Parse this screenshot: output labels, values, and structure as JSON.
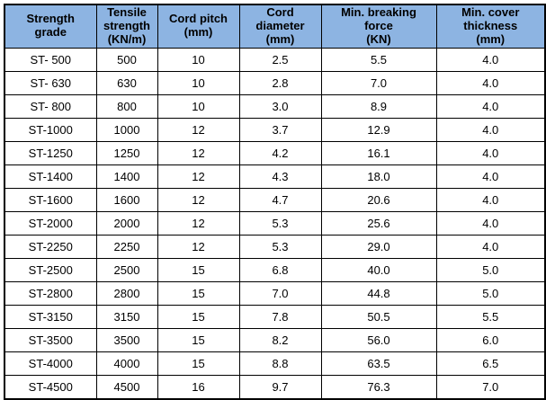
{
  "colors": {
    "header_bg": "#8DB4E2",
    "border": "#000000",
    "cell_bg": "#FFFFFF",
    "text": "#000000"
  },
  "table": {
    "columns": [
      {
        "label": "Strength\ngrade"
      },
      {
        "label": "Tensile\nstrength\n(KN/m)"
      },
      {
        "label": "Cord pitch\n(mm)"
      },
      {
        "label": "Cord\ndiameter\n(mm)"
      },
      {
        "label": "Min. breaking\nforce\n(KN)"
      },
      {
        "label": "Min. cover\nthickness\n(mm)"
      }
    ],
    "rows": [
      [
        "ST- 500",
        "500",
        "10",
        "2.5",
        "5.5",
        "4.0"
      ],
      [
        "ST- 630",
        "630",
        "10",
        "2.8",
        "7.0",
        "4.0"
      ],
      [
        "ST- 800",
        "800",
        "10",
        "3.0",
        "8.9",
        "4.0"
      ],
      [
        "ST-1000",
        "1000",
        "12",
        "3.7",
        "12.9",
        "4.0"
      ],
      [
        "ST-1250",
        "1250",
        "12",
        "4.2",
        "16.1",
        "4.0"
      ],
      [
        "ST-1400",
        "1400",
        "12",
        "4.3",
        "18.0",
        "4.0"
      ],
      [
        "ST-1600",
        "1600",
        "12",
        "4.7",
        "20.6",
        "4.0"
      ],
      [
        "ST-2000",
        "2000",
        "12",
        "5.3",
        "25.6",
        "4.0"
      ],
      [
        "ST-2250",
        "2250",
        "12",
        "5.3",
        "29.0",
        "4.0"
      ],
      [
        "ST-2500",
        "2500",
        "15",
        "6.8",
        "40.0",
        "5.0"
      ],
      [
        "ST-2800",
        "2800",
        "15",
        "7.0",
        "44.8",
        "5.0"
      ],
      [
        "ST-3150",
        "3150",
        "15",
        "7.8",
        "50.5",
        "5.5"
      ],
      [
        "ST-3500",
        "3500",
        "15",
        "8.2",
        "56.0",
        "6.0"
      ],
      [
        "ST-4000",
        "4000",
        "15",
        "8.8",
        "63.5",
        "6.5"
      ],
      [
        "ST-4500",
        "4500",
        "16",
        "9.7",
        "76.3",
        "7.0"
      ]
    ]
  }
}
